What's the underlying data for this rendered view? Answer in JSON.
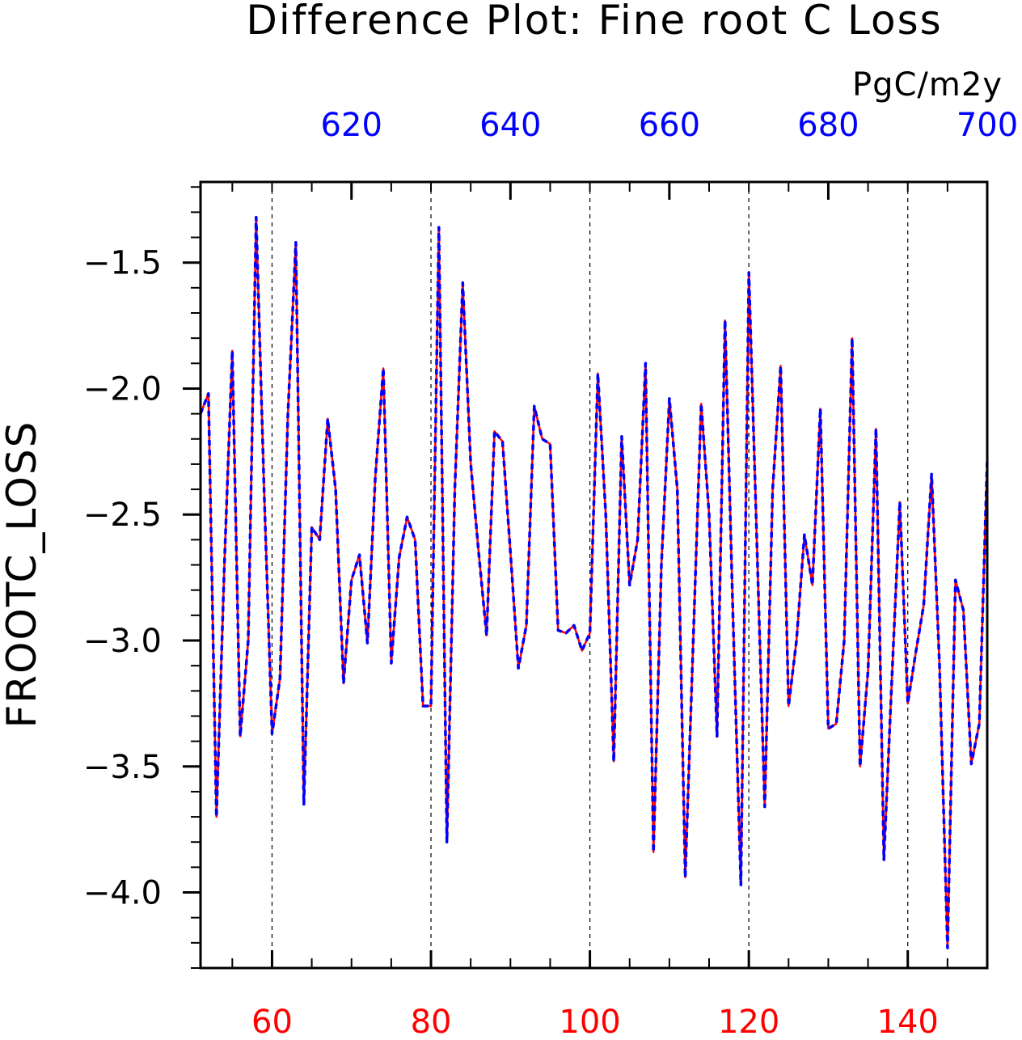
{
  "chart_data": {
    "type": "line",
    "title": "Difference Plot: Fine root C Loss",
    "units": "PgC/m2y",
    "ylabel": "FROOTC_LOSS",
    "xlim": [
      51,
      150
    ],
    "ylim": [
      -4.3,
      -1.18
    ],
    "top_xlim": [
      601,
      700
    ],
    "x_ticks": [
      60,
      80,
      100,
      120,
      140
    ],
    "x_tick_labels": [
      "60",
      "80",
      "100",
      "120",
      "140"
    ],
    "top_x_ticks": [
      620,
      640,
      660,
      680,
      700
    ],
    "top_x_tick_labels": [
      "620",
      "640",
      "660",
      "680",
      "700"
    ],
    "y_ticks": [
      -4.0,
      -3.5,
      -3.0,
      -2.5,
      -2.0,
      -1.5
    ],
    "y_tick_labels": [
      "−4.0",
      "−3.5",
      "−3.0",
      "−2.5",
      "−2.0",
      "−1.5"
    ],
    "grid": "vertical dashed at major x ticks",
    "colors": {
      "bottom_axis": "#ff0000",
      "top_axis": "#0000ff",
      "series_a": "#ff0000",
      "series_b": "#0000ff",
      "frame": "#000000"
    },
    "x": [
      51,
      52,
      53,
      54,
      55,
      56,
      57,
      58,
      59,
      60,
      61,
      62,
      63,
      64,
      65,
      66,
      67,
      68,
      69,
      70,
      71,
      72,
      73,
      74,
      75,
      76,
      77,
      78,
      79,
      80,
      81,
      82,
      83,
      84,
      85,
      86,
      87,
      88,
      89,
      90,
      91,
      92,
      93,
      94,
      95,
      96,
      97,
      98,
      99,
      100,
      101,
      102,
      103,
      104,
      105,
      106,
      107,
      108,
      109,
      110,
      111,
      112,
      113,
      114,
      115,
      116,
      117,
      118,
      119,
      120,
      121,
      122,
      123,
      124,
      125,
      126,
      127,
      128,
      129,
      130,
      131,
      132,
      133,
      134,
      135,
      136,
      137,
      138,
      139,
      140,
      141,
      142,
      143,
      144,
      145,
      146,
      147,
      148,
      149,
      150
    ],
    "series": [
      {
        "values": [
          -2.1,
          -2.02,
          -3.7,
          -2.7,
          -1.85,
          -3.38,
          -3.0,
          -1.32,
          -2.4,
          -3.37,
          -3.15,
          -2.1,
          -1.42,
          -3.65,
          -2.55,
          -2.6,
          -2.12,
          -2.4,
          -3.17,
          -2.76,
          -2.66,
          -3.01,
          -2.35,
          -1.92,
          -3.09,
          -2.67,
          -2.51,
          -2.6,
          -3.26,
          -3.26,
          -1.36,
          -3.8,
          -2.4,
          -1.58,
          -2.3,
          -2.65,
          -2.98,
          -2.17,
          -2.21,
          -2.65,
          -3.11,
          -2.94,
          -2.07,
          -2.2,
          -2.22,
          -2.96,
          -2.97,
          -2.94,
          -3.04,
          -2.97,
          -1.94,
          -2.5,
          -3.48,
          -2.19,
          -2.78,
          -2.6,
          -1.9,
          -3.84,
          -2.7,
          -2.04,
          -2.4,
          -3.94,
          -3.0,
          -2.06,
          -2.5,
          -3.38,
          -1.73,
          -2.9,
          -3.97,
          -1.54,
          -2.6,
          -3.66,
          -2.4,
          -1.91,
          -3.26,
          -3.0,
          -2.58,
          -2.78,
          -2.08,
          -3.35,
          -3.33,
          -3.0,
          -1.8,
          -3.5,
          -3.12,
          -2.16,
          -3.87,
          -3.15,
          -2.45,
          -3.25,
          -3.05,
          -2.86,
          -2.34,
          -3.1,
          -4.22,
          -2.76,
          -2.88,
          -3.49,
          -3.33,
          -2.28
        ]
      },
      {
        "values": [
          -2.1,
          -2.02,
          -3.7,
          -2.7,
          -1.85,
          -3.38,
          -3.0,
          -1.32,
          -2.4,
          -3.37,
          -3.15,
          -2.1,
          -1.42,
          -3.65,
          -2.55,
          -2.6,
          -2.12,
          -2.4,
          -3.17,
          -2.76,
          -2.66,
          -3.01,
          -2.35,
          -1.92,
          -3.09,
          -2.67,
          -2.51,
          -2.6,
          -3.26,
          -3.26,
          -1.36,
          -3.8,
          -2.4,
          -1.58,
          -2.3,
          -2.65,
          -2.98,
          -2.17,
          -2.21,
          -2.65,
          -3.11,
          -2.94,
          -2.07,
          -2.2,
          -2.22,
          -2.96,
          -2.97,
          -2.94,
          -3.04,
          -2.97,
          -1.94,
          -2.5,
          -3.48,
          -2.19,
          -2.78,
          -2.6,
          -1.9,
          -3.84,
          -2.7,
          -2.04,
          -2.4,
          -3.94,
          -3.0,
          -2.06,
          -2.5,
          -3.38,
          -1.73,
          -2.9,
          -3.97,
          -1.54,
          -2.6,
          -3.66,
          -2.4,
          -1.91,
          -3.26,
          -3.0,
          -2.58,
          -2.78,
          -2.08,
          -3.35,
          -3.33,
          -3.0,
          -1.8,
          -3.5,
          -3.12,
          -2.16,
          -3.87,
          -3.15,
          -2.45,
          -3.25,
          -3.05,
          -2.86,
          -2.34,
          -3.1,
          -4.22,
          -2.76,
          -2.88,
          -3.49,
          -3.33,
          -2.28
        ]
      }
    ]
  }
}
